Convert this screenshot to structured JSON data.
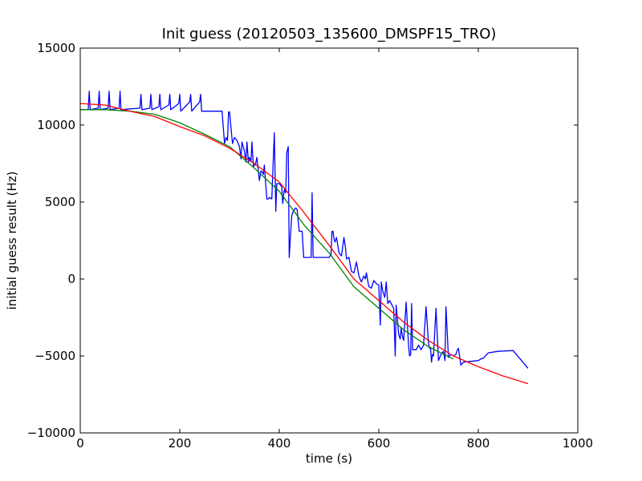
{
  "chart_data": {
    "type": "line",
    "title": "Init guess (20120503_135600_DMSPF15_TRO)",
    "xlabel": "time (s)",
    "ylabel": "initial guess result (Hz)",
    "xlim": [
      0,
      1000
    ],
    "ylim": [
      -10000,
      15000
    ],
    "x_ticks": [
      0,
      200,
      400,
      600,
      800,
      1000
    ],
    "y_ticks": [
      -10000,
      -5000,
      0,
      5000,
      10000,
      15000
    ],
    "x_tick_labels": [
      "0",
      "200",
      "400",
      "600",
      "800",
      "1000"
    ],
    "y_tick_labels": [
      "−10000",
      "−5000",
      "0",
      "5000",
      "10000",
      "15000"
    ],
    "grid": false,
    "series": [
      {
        "color": "#0000ff",
        "x": [
          0,
          16,
          18,
          20,
          36,
          38,
          40,
          56,
          58,
          60,
          78,
          80,
          82,
          120,
          122,
          124,
          140,
          142,
          144,
          158,
          160,
          162,
          178,
          180,
          182,
          198,
          200,
          202,
          220,
          222,
          224,
          240,
          242,
          244,
          285,
          290,
          293,
          296,
          298,
          300,
          306,
          310,
          315,
          320,
          323,
          325,
          330,
          333,
          335,
          338,
          340,
          343,
          345,
          348,
          350,
          352,
          355,
          360,
          363,
          365,
          368,
          370,
          372,
          375,
          378,
          380,
          385,
          390,
          393,
          395,
          400,
          405,
          407,
          410,
          413,
          415,
          418,
          420,
          425,
          428,
          430,
          432,
          434,
          436,
          440,
          446,
          449,
          450,
          460,
          464,
          466,
          468,
          470,
          472,
          475,
          478,
          500,
          504,
          506,
          508,
          510,
          512,
          515,
          518,
          520,
          525,
          530,
          533,
          535,
          540,
          545,
          550,
          555,
          560,
          565,
          570,
          573,
          575,
          580,
          585,
          590,
          595,
          600,
          603,
          605,
          608,
          610,
          612,
          615,
          618,
          622,
          625,
          628,
          630,
          633,
          635,
          640,
          643,
          645,
          648,
          650,
          655,
          660,
          662,
          664,
          666,
          668,
          670,
          675,
          680,
          685,
          690,
          695,
          700,
          702,
          704,
          706,
          708,
          710,
          715,
          720,
          725,
          730,
          733,
          735,
          740,
          745,
          750,
          755,
          758,
          760,
          765,
          770,
          800,
          805,
          810,
          820,
          840,
          870,
          900
        ],
        "y": [
          11000,
          11000,
          12200,
          11000,
          11100,
          12200,
          11000,
          11100,
          12200,
          11000,
          11100,
          12200,
          11000,
          11100,
          12000,
          11000,
          11100,
          12000,
          11000,
          11200,
          12000,
          11000,
          11300,
          12000,
          11000,
          11400,
          12000,
          10900,
          11500,
          12000,
          10900,
          11500,
          12000,
          10900,
          10900,
          8800,
          9200,
          9000,
          10850,
          10850,
          8800,
          9200,
          9000,
          8600,
          7800,
          8900,
          8300,
          7600,
          8900,
          7600,
          7900,
          7600,
          8900,
          7300,
          7400,
          7400,
          7900,
          6400,
          7000,
          7000,
          6800,
          7400,
          6500,
          5200,
          5200,
          5300,
          5200,
          9500,
          4400,
          6200,
          6200,
          6000,
          4900,
          5800,
          5600,
          8200,
          8600,
          1400,
          4100,
          4400,
          4500,
          4600,
          4600,
          4500,
          3100,
          3100,
          1400,
          1400,
          1400,
          1400,
          5600,
          1400,
          1400,
          1400,
          1400,
          1400,
          1400,
          1600,
          3100,
          3100,
          2600,
          2400,
          2700,
          2100,
          1700,
          1500,
          2700,
          2000,
          1300,
          1400,
          500,
          400,
          1100,
          200,
          -200,
          200,
          0,
          400,
          -500,
          -600,
          -100,
          -300,
          -400,
          -3000,
          -200,
          -800,
          -1000,
          -1200,
          -200,
          -1600,
          -1400,
          -1600,
          -1800,
          -1900,
          -5000,
          -1700,
          -3600,
          -3900,
          -3200,
          -3800,
          -4000,
          -1500,
          -4400,
          -5000,
          -4900,
          -1600,
          -4600,
          -4600,
          -4600,
          -4300,
          -4600,
          -4300,
          -1800,
          -4200,
          -4500,
          -4500,
          -5400,
          -4900,
          -5000,
          -1900,
          -5300,
          -4900,
          -4700,
          -5300,
          -1800,
          -5100,
          -4900,
          -5000,
          -4900,
          -4600,
          -4500,
          -5600,
          -5400,
          -5300,
          -5200,
          -5150,
          -4800,
          -4700,
          -4650,
          -5800
        ]
      },
      {
        "color": "#008000",
        "x": [
          0,
          50,
          100,
          150,
          200,
          250,
          300,
          350,
          400,
          450,
          500,
          550,
          600,
          650,
          700,
          750
        ],
        "y": [
          11000,
          11000,
          10900,
          10700,
          10150,
          9400,
          8600,
          7200,
          5700,
          3500,
          1700,
          -500,
          -1900,
          -3300,
          -4400,
          -5200
        ]
      },
      {
        "color": "#ff0000",
        "x": [
          0,
          50,
          100,
          150,
          200,
          250,
          300,
          350,
          400,
          450,
          500,
          550,
          600,
          650,
          700,
          750,
          800,
          850,
          900
        ],
        "y": [
          11400,
          11300,
          10900,
          10550,
          9900,
          9300,
          8500,
          7500,
          6300,
          4300,
          2200,
          0,
          -1400,
          -2800,
          -4000,
          -5000,
          -5700,
          -6300,
          -6800
        ]
      }
    ]
  }
}
